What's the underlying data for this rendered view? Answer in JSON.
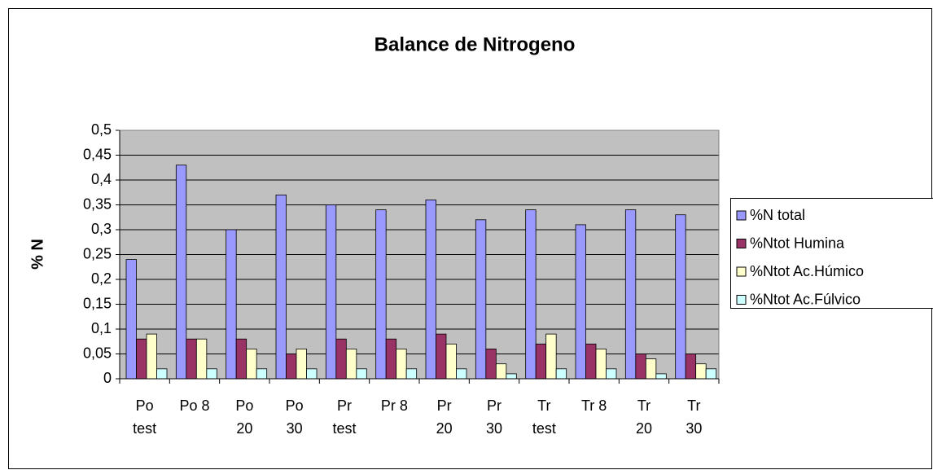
{
  "chart_data": {
    "type": "bar",
    "title": "Balance de Nitrogeno",
    "y_label": "% N",
    "categories": [
      "Po test",
      "Po 8",
      "Po 20",
      "Po 30",
      "Pr test",
      "Pr 8",
      "Pr 20",
      "Pr 30",
      "Tr test",
      "Tr 8",
      "Tr 20",
      "Tr 30"
    ],
    "series": [
      {
        "name": "%N total",
        "color": "#9999ff",
        "values": [
          0.24,
          0.43,
          0.3,
          0.37,
          0.35,
          0.34,
          0.36,
          0.32,
          0.34,
          0.31,
          0.34,
          0.33
        ]
      },
      {
        "name": "%Ntot Humina",
        "color": "#993366",
        "values": [
          0.08,
          0.08,
          0.08,
          0.05,
          0.08,
          0.08,
          0.09,
          0.06,
          0.07,
          0.07,
          0.05,
          0.05
        ]
      },
      {
        "name": "%Ntot Ac.Húmico",
        "color": "#ffffcc",
        "values": [
          0.09,
          0.08,
          0.06,
          0.06,
          0.06,
          0.06,
          0.07,
          0.03,
          0.09,
          0.06,
          0.04,
          0.03
        ]
      },
      {
        "name": "%Ntot Ac.Fúlvico",
        "color": "#ccffff",
        "values": [
          0.02,
          0.02,
          0.02,
          0.02,
          0.02,
          0.02,
          0.02,
          0.01,
          0.02,
          0.02,
          0.01,
          0.02
        ]
      }
    ],
    "ylim": [
      0,
      0.5
    ],
    "yticks": [
      0,
      {
        "value": 0.05,
        "label": "0,05"
      },
      {
        "value": 0.1,
        "label": "0,1"
      },
      {
        "value": 0.15,
        "label": "0,15"
      },
      {
        "value": 0.2,
        "label": "0,2"
      },
      {
        "value": 0.25,
        "label": "0,25"
      },
      {
        "value": 0.3,
        "label": "0,3"
      },
      {
        "value": 0.35,
        "label": "0,35"
      },
      {
        "value": 0.4,
        "label": "0,4"
      },
      {
        "value": 0.45,
        "label": "0,45"
      },
      {
        "value": 0.5,
        "label": "0,5"
      }
    ],
    "grid": true,
    "plot_background": "#c0c0c0",
    "legend": "right"
  }
}
